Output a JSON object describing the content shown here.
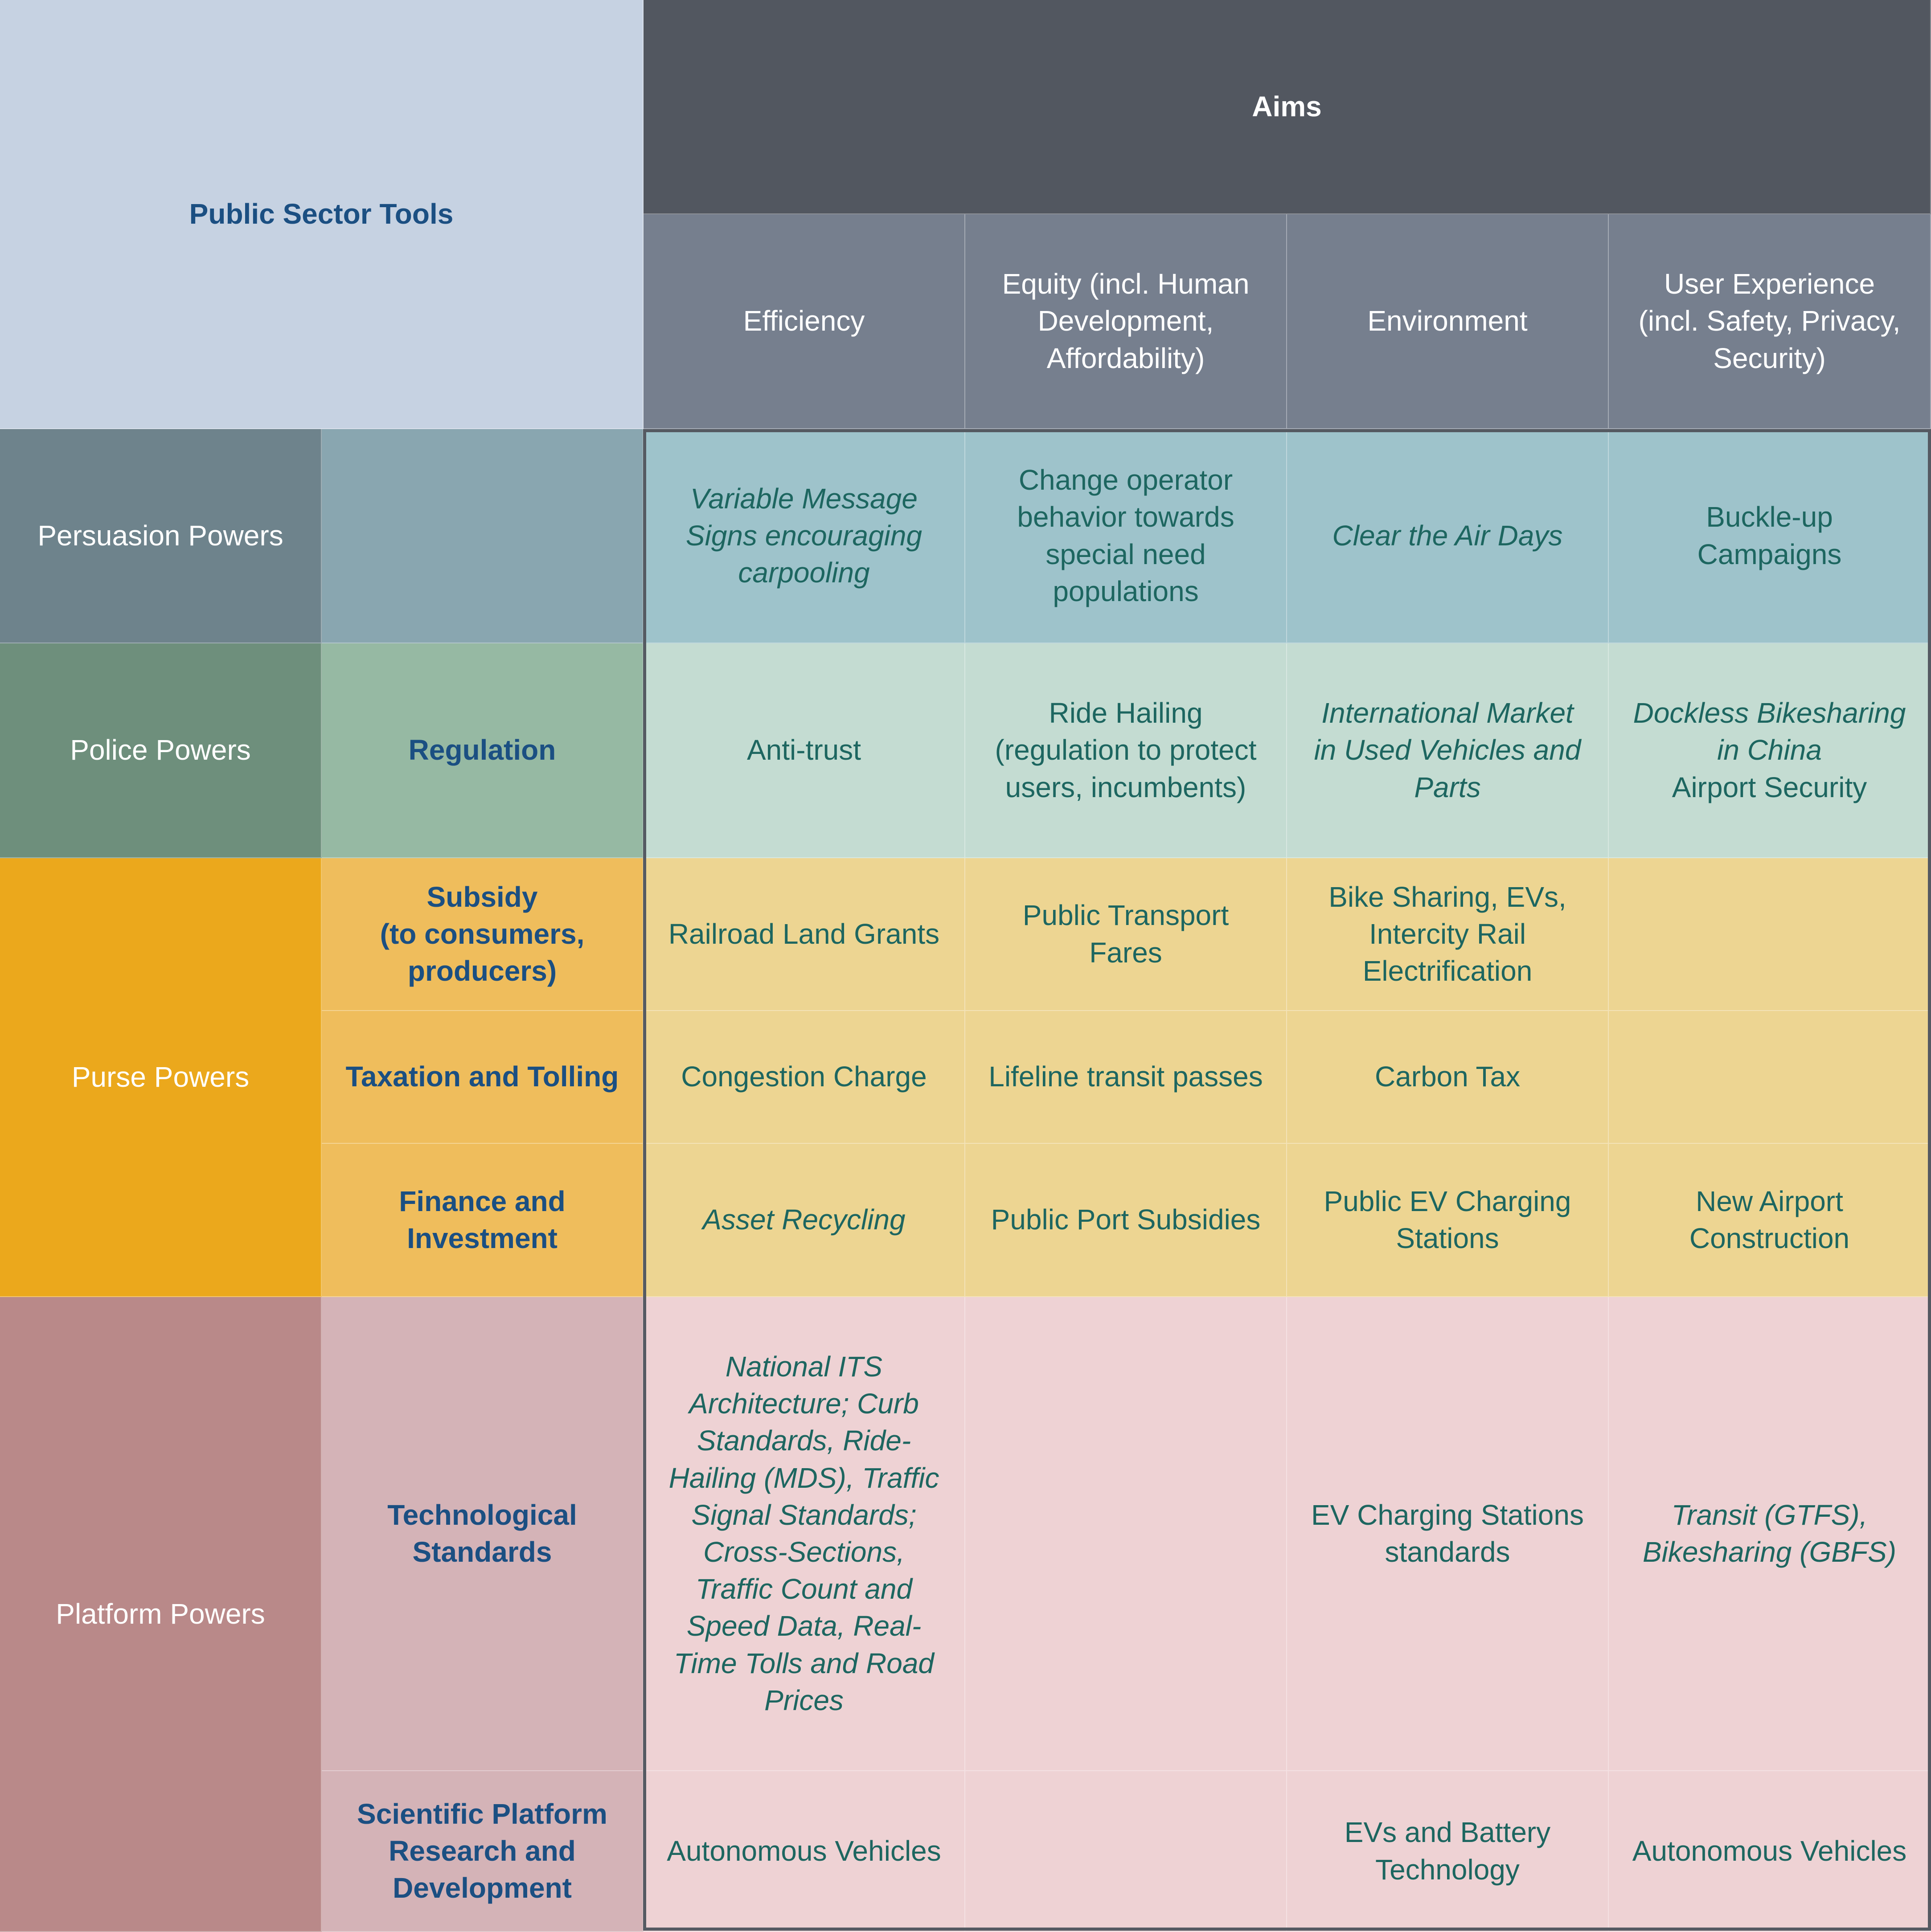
{
  "header": {
    "corner": "Public Sector Tools",
    "aims": "Aims",
    "columns": [
      "Efficiency",
      "Equity (incl. Human\nDevelopment,\nAffordability)",
      "Environment",
      "User Experience\n(incl. Safety, Privacy,\nSecurity)"
    ]
  },
  "powers": {
    "persuasion": "Persuasion Powers",
    "police": "Police Powers",
    "purse": "Purse Powers",
    "platform": "Platform Powers"
  },
  "rows": {
    "persuasion": {
      "sub": "",
      "cells": [
        "Variable Message\nSigns encouraging\ncarpooling",
        "Change operator\nbehavior towards\nspecial need\npopulations",
        "Clear the Air Days",
        "Buckle-up\nCampaigns"
      ]
    },
    "regulation": {
      "sub": "Regulation",
      "cells": [
        "Anti-trust",
        "Ride Hailing\n(regulation to protect\nusers, incumbents)",
        "International Market\nin Used Vehicles and\nParts",
        "Dockless Bikesharing\nin China"
      ],
      "extra": "Airport Security"
    },
    "subsidy": {
      "sub": "Subsidy\n(to consumers,\nproducers)",
      "cells": [
        "Railroad Land Grants",
        "Public Transport\nFares",
        "Bike Sharing, EVs,\nIntercity Rail\nElectrification",
        ""
      ]
    },
    "taxation": {
      "sub": "Taxation and Tolling",
      "cells": [
        "Congestion Charge",
        "Lifeline transit passes",
        "Carbon Tax",
        ""
      ]
    },
    "finance": {
      "sub": "Finance and\nInvestment",
      "cells": [
        "Asset Recycling",
        "Public Port Subsidies",
        "Public EV Charging\nStations",
        "New Airport\nConstruction"
      ]
    },
    "standards": {
      "sub": "Technological\nStandards",
      "cells": [
        "National ITS\nArchitecture; Curb\nStandards, Ride-\nHailing (MDS), Traffic\nSignal Standards;\nCross-Sections,\nTraffic Count and\nSpeed Data, Real-\nTime Tolls and Road\nPrices",
        "",
        "EV Charging Stations\nstandards",
        "Transit (GTFS),\nBikesharing (GBFS)"
      ]
    },
    "research": {
      "sub": "Scientific Platform\nResearch and\nDevelopment",
      "cells": [
        "Autonomous Vehicles",
        "",
        "EVs and Battery\nTechnology",
        "Autonomous Vehicles"
      ]
    }
  }
}
